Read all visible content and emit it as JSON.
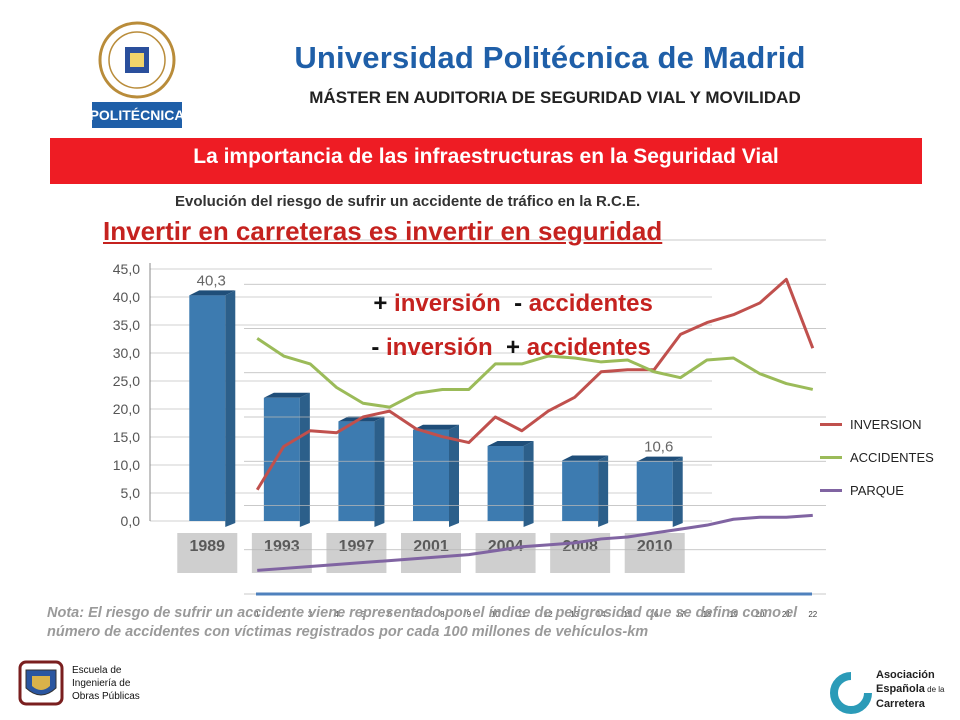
{
  "header": {
    "logo_label": "POLITÉCNICA",
    "university": "Universidad Politécnica de Madrid",
    "master": "MÁSTER EN AUDITORIA DE SEGURIDAD VIAL Y MOVILIDAD"
  },
  "banner": {
    "text": "La importancia de las infraestructuras en la Seguridad Vial"
  },
  "headline": "Invertir en carreteras es invertir en seguridad",
  "phrases": {
    "line1_prefix": "+ ",
    "line1_word1": "inversión",
    "line1_mid": "  - ",
    "line1_word2": "accidentes",
    "line2_prefix": "- ",
    "line2_word1": "inversión",
    "line2_mid": "  + ",
    "line2_word2": "accidentes"
  },
  "note": {
    "text": "Nota: El riesgo de sufrir un accidente viene representado por el índice de peligrosidad que se define como el número de accidentes con víctimas registrados por cada 100 millones de vehículos-km"
  },
  "chart_data": [
    {
      "type": "bar",
      "title": "Evolución del riesgo de sufrir un accidente de tráfico en la R.C.E.",
      "categories": [
        "1989",
        "1993",
        "1997",
        "2001",
        "2004",
        "2008",
        "2010"
      ],
      "values": [
        40.3,
        22.0,
        17.8,
        16.3,
        13.4,
        10.8,
        10.6
      ],
      "data_labels": [
        "40,3",
        "",
        "",
        "",
        "",
        "",
        "10,6"
      ],
      "yticks": [
        "45,0",
        "40,0",
        "35,0",
        "30,0",
        "25,0",
        "20,0",
        "15,0",
        "10,0",
        "5,0",
        "0,0"
      ],
      "ylim": [
        0,
        45
      ],
      "bar_color": "#3d7bb0"
    },
    {
      "type": "line",
      "x": [
        "1",
        "2",
        "3",
        "4",
        "5",
        "6",
        "7",
        "8",
        "9",
        "10",
        "11",
        "12",
        "13",
        "14",
        "15",
        "16",
        "17",
        "18",
        "19",
        "20",
        "21",
        "22"
      ],
      "series": [
        {
          "name": "INVERSION",
          "color": "#c0504d",
          "values": [
            3,
            25,
            33,
            32,
            40,
            43,
            34,
            30,
            27,
            40,
            33,
            43,
            50,
            63,
            64,
            64,
            82,
            88,
            92,
            98,
            110,
            75
          ]
        },
        {
          "name": "ACCIDENTES",
          "color": "#9bbb59",
          "values": [
            80,
            71,
            67,
            55,
            47,
            45,
            52,
            54,
            54,
            67,
            67,
            71,
            70,
            68,
            69,
            63,
            60,
            69,
            70,
            62,
            57,
            54
          ]
        },
        {
          "name": "PARQUE",
          "color": "#8064a2",
          "values": [
            -38,
            -37,
            -36,
            -35,
            -34,
            -33,
            -32,
            -31,
            -30,
            -28,
            -26,
            -25,
            -24,
            -22,
            -21,
            -19,
            -17,
            -15,
            -12,
            -11,
            -11,
            -10
          ]
        }
      ],
      "ylim": [
        -50,
        130
      ],
      "legend_position": "right"
    }
  ],
  "footer": {
    "school_line1": "Escuela de",
    "school_line2": "Ingeniería de",
    "school_line3": "Obras Públicas",
    "aec_line1": "Asociación",
    "aec_line2": "Española",
    "aec_line2b": " de la",
    "aec_line3": "Carretera"
  }
}
